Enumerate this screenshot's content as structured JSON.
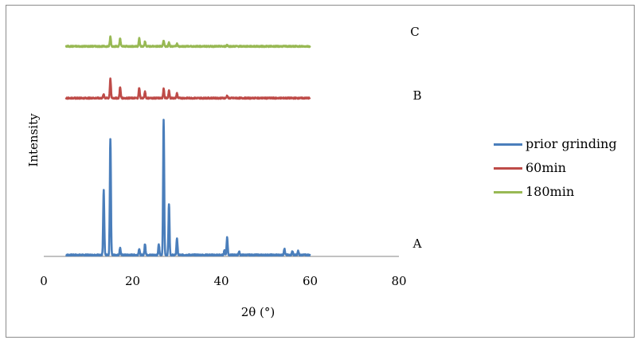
{
  "chart_data": {
    "type": "line",
    "title": "",
    "xlabel": "2θ (°)",
    "ylabel": "Intensity",
    "xlim": [
      0,
      80
    ],
    "xticks": [
      0,
      20,
      40,
      60,
      80
    ],
    "x_range": [
      5,
      60
    ],
    "grid": false,
    "legend_position": "right",
    "annotations": [
      "A",
      "B",
      "C"
    ],
    "series": [
      {
        "name": "prior grinding",
        "label": "A",
        "color": "#4a7ebb",
        "peaks": [
          {
            "x": 13.5,
            "y": 81
          },
          {
            "x": 15.0,
            "y": 146
          },
          {
            "x": 17.2,
            "y": 9
          },
          {
            "x": 21.5,
            "y": 8
          },
          {
            "x": 22.8,
            "y": 14
          },
          {
            "x": 25.9,
            "y": 13
          },
          {
            "x": 27.0,
            "y": 170
          },
          {
            "x": 28.2,
            "y": 64
          },
          {
            "x": 30.0,
            "y": 21
          },
          {
            "x": 40.7,
            "y": 6
          },
          {
            "x": 41.3,
            "y": 22
          },
          {
            "x": 44.0,
            "y": 4
          },
          {
            "x": 54.2,
            "y": 8
          },
          {
            "x": 56.0,
            "y": 5
          },
          {
            "x": 57.3,
            "y": 5
          }
        ]
      },
      {
        "name": "60min",
        "label": "B",
        "color": "#be4b48",
        "peaks": [
          {
            "x": 13.5,
            "y": 5
          },
          {
            "x": 15.0,
            "y": 24
          },
          {
            "x": 17.2,
            "y": 14
          },
          {
            "x": 21.5,
            "y": 13
          },
          {
            "x": 22.8,
            "y": 8
          },
          {
            "x": 27.0,
            "y": 12
          },
          {
            "x": 28.2,
            "y": 9
          },
          {
            "x": 30.0,
            "y": 6
          },
          {
            "x": 41.3,
            "y": 3
          }
        ]
      },
      {
        "name": "180min",
        "label": "C",
        "color": "#98b954",
        "peaks": [
          {
            "x": 15.0,
            "y": 12
          },
          {
            "x": 17.2,
            "y": 10
          },
          {
            "x": 21.5,
            "y": 10
          },
          {
            "x": 22.8,
            "y": 6
          },
          {
            "x": 27.0,
            "y": 7
          },
          {
            "x": 28.2,
            "y": 5
          },
          {
            "x": 30.0,
            "y": 3
          },
          {
            "x": 41.3,
            "y": 2
          }
        ]
      }
    ]
  }
}
